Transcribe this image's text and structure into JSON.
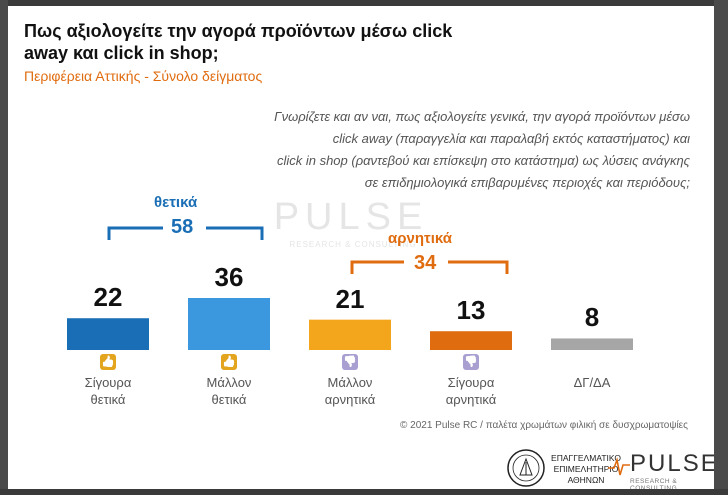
{
  "title": "Πως αξιολογείτε την αγορά προϊόντων μέσω click away και click in shop;",
  "subtitle": "Περιφέρεια Αττικής - Σύνολο δείγματος",
  "question_lines": [
    "Γνωρίζετε και αν ναι, πως αξιολογείτε γενικά, την αγορά προϊόντων μέσω",
    "click away (παραγγελία και παραλαβή εκτός καταστήματος) και",
    "click in shop (ραντεβού και επίσκεψη στο κατάστημα) ως λύσεις ανάγκης",
    "σε επιδημιολογικά επιβαρυμένες περιοχές και περιόδους;"
  ],
  "watermark": {
    "word": "PULSE",
    "tag": "RESEARCH & CONSULTING"
  },
  "groups": {
    "positive": {
      "label": "θετικά",
      "total": "58",
      "color": "#1a6eb5"
    },
    "negative": {
      "label": "αρνητικά",
      "total": "34",
      "color": "#e06c10"
    }
  },
  "chart_data": {
    "type": "bar",
    "categories": [
      [
        "Σίγουρα",
        "θετικά"
      ],
      [
        "Μάλλον",
        "θετικά"
      ],
      [
        "Μάλλον",
        "αρνητικά"
      ],
      [
        "Σίγουρα",
        "αρνητικά"
      ],
      [
        "ΔΓ/ΔΑ"
      ]
    ],
    "values": [
      22,
      36,
      21,
      13,
      8
    ],
    "colors": [
      "#1a6eb5",
      "#3b98de",
      "#f3a61c",
      "#e06c10",
      "#a6a6a6"
    ],
    "icons": [
      "double-thumbs-up-icon",
      "thumbs-up-icon",
      "thumbs-down-icon",
      "double-thumbs-down-icon",
      ""
    ],
    "icon_colors": [
      "#e3a41e",
      "#e3a41e",
      "#a99fd1",
      "#a99fd1",
      ""
    ]
  },
  "footer": "© 2021 Pulse RC   /   παλέτα χρωμάτων φιλική σε δυσχρωματοψίες",
  "logos": {
    "ebea_lines": [
      "ΕΠΑΓΓΕΛΜΑΤΙΚΟ",
      "ΕΠΙΜΕΛΗΤΗΡΙΟ",
      "ΑΘΗΝΩΝ"
    ],
    "pulse_word": "PULSE",
    "pulse_tag": "RESEARCH & CONSULTING"
  }
}
